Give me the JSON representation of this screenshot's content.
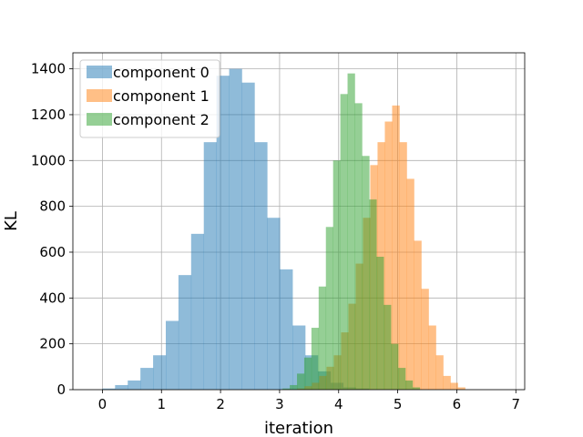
{
  "chart_data": {
    "type": "histogram",
    "title": "",
    "xlabel": "iteration",
    "ylabel": "KL",
    "xlim": [
      -0.5,
      7.15
    ],
    "ylim": [
      0,
      1470
    ],
    "x_ticks": [
      0,
      1,
      2,
      3,
      4,
      5,
      6,
      7
    ],
    "y_ticks": [
      0,
      200,
      400,
      600,
      800,
      1000,
      1200,
      1400
    ],
    "grid": true,
    "legend_position": "top-left",
    "series": [
      {
        "name": "component 0",
        "color": "#1f77b4",
        "opacity": 0.5,
        "bin_start": 0.0,
        "bin_width": 0.2146,
        "counts": [
          5,
          20,
          40,
          95,
          150,
          300,
          500,
          680,
          1080,
          1370,
          1400,
          1340,
          1080,
          750,
          525,
          280,
          150,
          80,
          30,
          10,
          5
        ]
      },
      {
        "name": "component 1",
        "color": "#ff7f0e",
        "opacity": 0.5,
        "bin_start": 3.3,
        "bin_width": 0.1235,
        "counts": [
          5,
          15,
          30,
          60,
          100,
          150,
          250,
          375,
          550,
          750,
          980,
          1080,
          1170,
          1240,
          1080,
          920,
          650,
          440,
          280,
          150,
          60,
          30,
          10
        ]
      },
      {
        "name": "component 2",
        "color": "#2ca02c",
        "opacity": 0.5,
        "bin_start": 3.05,
        "bin_width": 0.1223,
        "counts": [
          5,
          20,
          70,
          140,
          270,
          450,
          710,
          1000,
          1290,
          1380,
          1250,
          1020,
          830,
          580,
          370,
          200,
          95,
          40,
          10
        ]
      }
    ]
  }
}
